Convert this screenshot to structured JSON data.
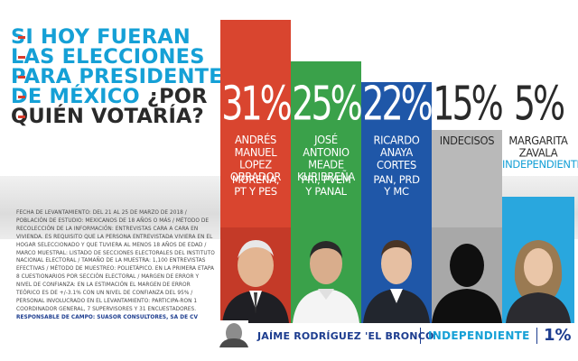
{
  "title": {
    "line1": "SI HOY FUERAN",
    "line2": "LAS ELECCIONES",
    "line3": "PARA PRESIDENTE",
    "line4_blue": "DE MÉXICO",
    "line4_q": "¿POR",
    "line5": "QUIÉN VOTARÍA?"
  },
  "colors": {
    "amlo": "#d9452f",
    "meade": "#3aa14a",
    "anaya": "#1f57a8",
    "indecisos": "#b9b9b9",
    "zavala": "#29a7de",
    "title_blue": "#15a0d6",
    "dark": "#2a2a2a"
  },
  "chart_data": {
    "type": "bar",
    "categories": [
      "ANDRÉS MANUEL LOPEZ OBRADOR",
      "JOSÉ ANTONIO MEADE KURIBREÑA",
      "RICARDO ANAYA CORTES",
      "INDECISOS",
      "MARGARITA ZAVALA",
      "JAÍME RODRÍGUEZ 'EL BRONCO'"
    ],
    "values": [
      31,
      25,
      22,
      15,
      5,
      1
    ],
    "value_labels": [
      "31%",
      "25%",
      "22%",
      "15%",
      "5%",
      "1%"
    ],
    "parties": [
      "MORENA, PT Y PES",
      "PRI, PVEM Y PANAL",
      "PAN, PRD Y MC",
      "",
      "INDEPENDIENTE",
      "INDEPENDIENTE"
    ],
    "ylabel": "",
    "xlabel": ""
  },
  "bars": [
    {
      "pct": "31%",
      "name": [
        "ANDRÉS",
        "MANUEL LOPEZ",
        "OBRADOR"
      ],
      "party": [
        "MORENA,",
        "PT Y PES"
      ]
    },
    {
      "pct": "25%",
      "name": [
        "JOSÉ ANTONIO",
        "MEADE",
        "KURIBREÑA"
      ],
      "party": [
        "PRI, PVEM",
        "Y PANAL"
      ]
    },
    {
      "pct": "22%",
      "name": [
        "RICARDO",
        "ANAYA",
        "CORTES"
      ],
      "party": [
        "PAN, PRD",
        "Y MC"
      ]
    },
    {
      "pct": "15%",
      "name": [
        "INDECISOS"
      ],
      "party": []
    },
    {
      "pct": "5%",
      "name": [
        "MARGARITA",
        "ZAVALA"
      ],
      "party": [
        "INDEPENDIENTE"
      ]
    }
  ],
  "bronco": {
    "name": "JAÍME RODRÍGUEZ 'EL BRONCO'",
    "party": "INDEPENDIENTE",
    "pct": "1%"
  },
  "methodology": {
    "text": "FECHA DE LEVANTAMIENTO: DEL 21 AL 25 DE MARZO DE 2018 / POBLACIÓN DE ESTUDIO: MEXICANOS DE 18 AÑOS O MÁS / MÉTODO DE RECOLECCIÓN DE LA INFORMACIÓN: ENTREVISTAS CARA A CARA EN VIVIENDA. ES REQUISITO QUE LA PERSONA ENTREVISTADA VIVIERA EN EL HOGAR SELECCIONADO Y QUE TUVIERA AL MENOS 18 AÑOS DE EDAD / MARCO MUESTRAL: LISTADO DE SECCIONES ELECTORALES DEL INSTITUTO NACIONAL ELECTORAL / TAMAÑO DE LA MUESTRA: 1,100 ENTREVISTAS EFECTIVAS / MÉTODO DE MUESTREO: POLIETÁPICO. EN LA PRIMERA ETAPA 8 CUESTIONARIOS POR SECCIÓN ELECTORAL / MARGEN DE ERROR Y NIVEL DE CONFIANZA: EN LA ESTIMACIÓN EL MARGEN DE ERROR TEÓRICO ES DE +/-3.1% CON UN NIVEL DE CONFIANZA DEL 95% / PERSONAL INVOLUCRADO EN EL LEVANTAMIENTO: PARTICIPA-RON 1 COORDINADOR GENERAL, 7 SUPERVISORES Y 31 ENCUESTADORES.",
    "responsible": "RESPONSABLE DE CAMPO: SUASOR CONSULTORES, SA DE CV"
  }
}
